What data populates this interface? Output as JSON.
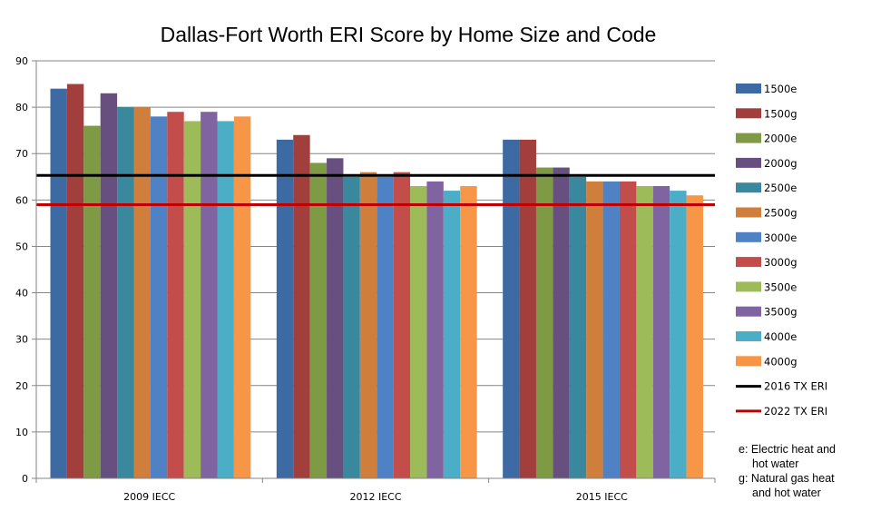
{
  "chart_data": {
    "type": "bar",
    "title": "Dallas-Fort Worth ERI Score by Home Size and Code",
    "xlabel": "",
    "ylabel": "",
    "ylim": [
      0,
      90
    ],
    "yticks": [
      0,
      10,
      20,
      30,
      40,
      50,
      60,
      70,
      80,
      90
    ],
    "categories": [
      "2009 IECC",
      "2012 IECC",
      "2015 IECC"
    ],
    "grid": true,
    "legend_position": "right",
    "series": [
      {
        "name": "1500e",
        "color": "#3e6aa3",
        "values": [
          84,
          73,
          73
        ]
      },
      {
        "name": "1500g",
        "color": "#a23e3b",
        "values": [
          85,
          74,
          73
        ]
      },
      {
        "name": "2000e",
        "color": "#7f9a45",
        "values": [
          76,
          68,
          67
        ]
      },
      {
        "name": "2000g",
        "color": "#67507f",
        "values": [
          83,
          69,
          67
        ]
      },
      {
        "name": "2500e",
        "color": "#3a889e",
        "values": [
          80,
          65,
          65
        ]
      },
      {
        "name": "2500g",
        "color": "#d07e3b",
        "values": [
          80,
          66,
          64
        ]
      },
      {
        "name": "3000e",
        "color": "#4f82c4",
        "values": [
          78,
          65,
          64
        ]
      },
      {
        "name": "3000g",
        "color": "#c24d4a",
        "values": [
          79,
          66,
          64
        ]
      },
      {
        "name": "3500e",
        "color": "#9dbb59",
        "values": [
          77,
          63,
          63
        ]
      },
      {
        "name": "3500g",
        "color": "#8064a1",
        "values": [
          79,
          64,
          63
        ]
      },
      {
        "name": "4000e",
        "color": "#4badc6",
        "values": [
          77,
          62,
          62
        ]
      },
      {
        "name": "4000g",
        "color": "#f79646",
        "values": [
          78,
          63,
          61
        ]
      }
    ],
    "reference_lines": [
      {
        "name": "2016 TX ERI",
        "color": "#000000",
        "value": 65.3
      },
      {
        "name": "2022 TX ERI",
        "color": "#c00000",
        "value": 59
      }
    ],
    "notes": [
      {
        "lines": [
          "e: Electric heat and",
          "hot water"
        ]
      },
      {
        "lines": [
          "g: Natural gas heat",
          "and hot water"
        ]
      }
    ]
  }
}
